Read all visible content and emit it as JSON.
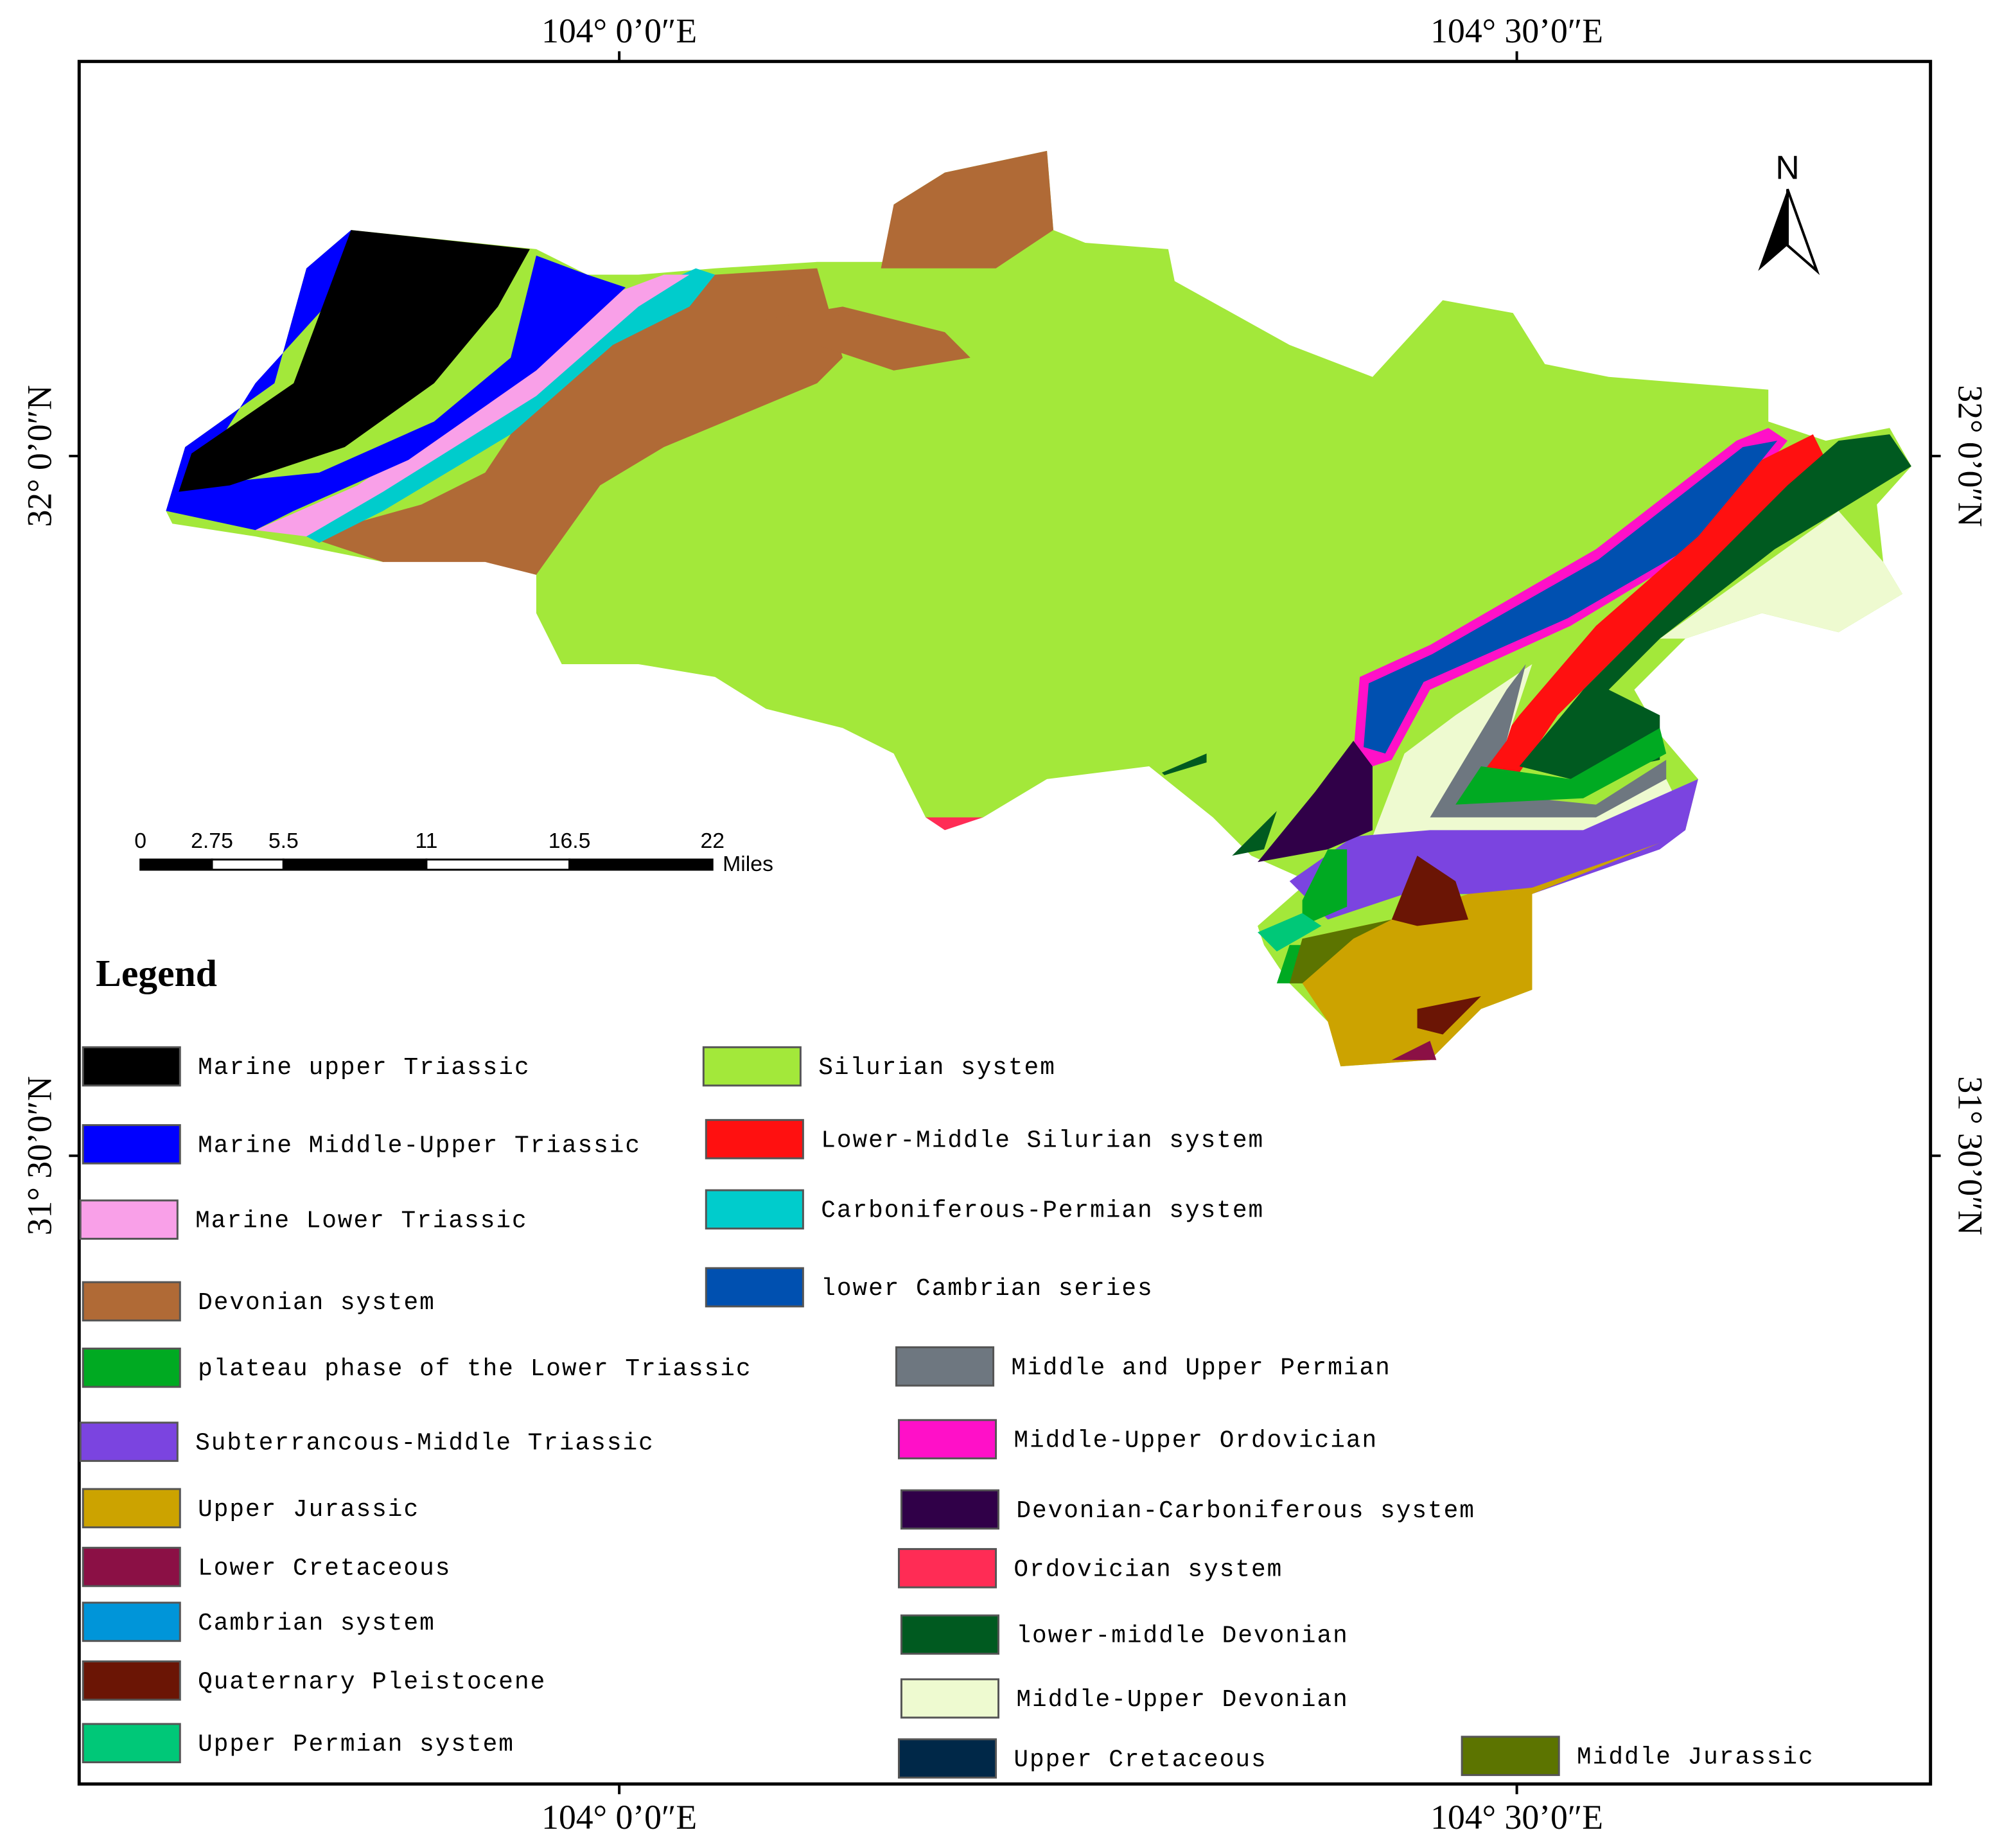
{
  "coordinates": {
    "top": [
      "104° 0’0″E",
      "104° 30’0″E"
    ],
    "bottom": [
      "104° 0’0″E",
      "104° 30’0″E"
    ],
    "left": [
      "32° 0’0″N",
      "31° 30’0″N"
    ],
    "right": [
      "32° 0’0″N",
      "31° 30’0″N"
    ]
  },
  "north_arrow": "N",
  "scale_bar": {
    "ticks": [
      0,
      2.75,
      5.5,
      11,
      16.5,
      22
    ],
    "unit": "Miles"
  },
  "legend": {
    "title": "Legend",
    "items": [
      {
        "name": "Marine upper Triassic",
        "color": "#000000"
      },
      {
        "name": "Marine Middle-Upper Triassic",
        "color": "#0000ff"
      },
      {
        "name": "Marine Lower Triassic",
        "color": "#f9a0e8"
      },
      {
        "name": "Devonian system",
        "color": "#b06a36"
      },
      {
        "name": "plateau phase of the Lower Triassic",
        "color": "#00aa22"
      },
      {
        "name": "Subterrancous-Middle Triassic",
        "color": "#7b44e0"
      },
      {
        "name": "Upper Jurassic",
        "color": "#cca300"
      },
      {
        "name": "Lower Cretaceous",
        "color": "#8b1045"
      },
      {
        "name": "Cambrian system",
        "color": "#0095d9"
      },
      {
        "name": "Quaternary Pleistocene",
        "color": "#6b1505"
      },
      {
        "name": "Upper Permian system",
        "color": "#00c878"
      },
      {
        "name": "Silurian system",
        "color": "#a3e83a"
      },
      {
        "name": "Lower-Middle Silurian system",
        "color": "#ff1010"
      },
      {
        "name": "Carboniferous-Permian system",
        "color": "#00cccc"
      },
      {
        "name": "lower Cambrian series",
        "color": "#0050b0"
      },
      {
        "name": "Middle and Upper Permian",
        "color": "#6e7780"
      },
      {
        "name": "Middle-Upper Ordovician",
        "color": "#ff10c8"
      },
      {
        "name": "Devonian-Carboniferous system",
        "color": "#300048"
      },
      {
        "name": "Ordovician system",
        "color": "#ff2c55"
      },
      {
        "name": "lower-middle Devonian",
        "color": "#005a20"
      },
      {
        "name": "Middle-Upper Devonian",
        "color": "#eefad0"
      },
      {
        "name": "Upper Cretaceous",
        "color": "#002848"
      },
      {
        "name": "Middle Jurassic",
        "color": "#5c7400"
      }
    ]
  }
}
